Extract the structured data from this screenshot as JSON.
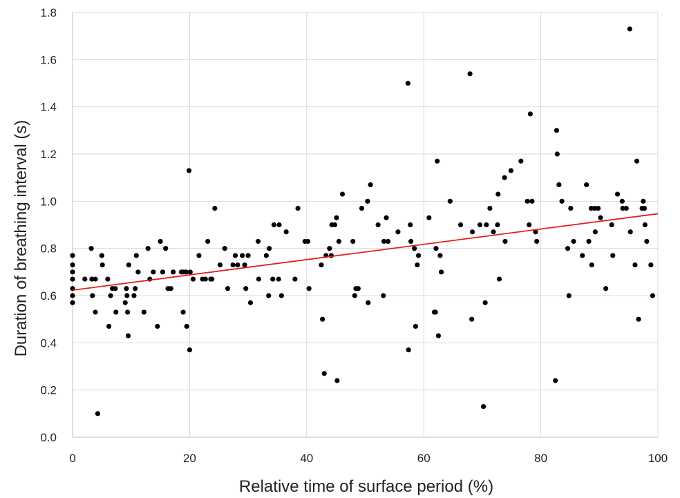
{
  "chart_data": {
    "type": "scatter",
    "title": "",
    "xlabel": "Relative time of surface period (%)",
    "ylabel": "Duration of breathing interval (s)",
    "xlim": [
      0,
      100
    ],
    "ylim": [
      0,
      1.8
    ],
    "xticks": [
      0,
      20,
      40,
      60,
      80,
      100
    ],
    "yticks": [
      0.0,
      0.2,
      0.4,
      0.6,
      0.8,
      1.0,
      1.2,
      1.4,
      1.6,
      1.8
    ],
    "xtick_labels": [
      "0",
      "20",
      "40",
      "60",
      "80",
      "100"
    ],
    "ytick_labels": [
      "0.0",
      "0.2",
      "0.4",
      "0.6",
      "0.8",
      "1.0",
      "1.2",
      "1.4",
      "1.6",
      "1.8"
    ],
    "grid": true,
    "point_color": "#000000",
    "trend_color": "#e0201b",
    "trendline": {
      "x": [
        0,
        100
      ],
      "y": [
        0.623,
        0.947
      ]
    },
    "points": [
      [
        0,
        0.57
      ],
      [
        0,
        0.6
      ],
      [
        0,
        0.63
      ],
      [
        0,
        0.67
      ],
      [
        0,
        0.7
      ],
      [
        0,
        0.73
      ],
      [
        0,
        0.77
      ],
      [
        2.1,
        0.67
      ],
      [
        3.2,
        0.8
      ],
      [
        3.3,
        0.67
      ],
      [
        3.4,
        0.6
      ],
      [
        3.9,
        0.67
      ],
      [
        3.9,
        0.53
      ],
      [
        4.3,
        0.1
      ],
      [
        5,
        0.77
      ],
      [
        5.1,
        0.73
      ],
      [
        6,
        0.67
      ],
      [
        6.2,
        0.47
      ],
      [
        6.5,
        0.6
      ],
      [
        6.8,
        0.63
      ],
      [
        7.3,
        0.63
      ],
      [
        7.4,
        0.53
      ],
      [
        9,
        0.57
      ],
      [
        9.2,
        0.63
      ],
      [
        9.3,
        0.6
      ],
      [
        9.4,
        0.53
      ],
      [
        9.5,
        0.43
      ],
      [
        9.6,
        0.73
      ],
      [
        10.5,
        0.6
      ],
      [
        10.7,
        0.63
      ],
      [
        10.9,
        0.77
      ],
      [
        11.2,
        0.7
      ],
      [
        12.2,
        0.53
      ],
      [
        12.9,
        0.8
      ],
      [
        13.2,
        0.67
      ],
      [
        13.8,
        0.7
      ],
      [
        14.5,
        0.47
      ],
      [
        15,
        0.83
      ],
      [
        15.4,
        0.7
      ],
      [
        15.9,
        0.8
      ],
      [
        16.3,
        0.63
      ],
      [
        16.8,
        0.63
      ],
      [
        17.2,
        0.7
      ],
      [
        18.6,
        0.7
      ],
      [
        18.9,
        0.53
      ],
      [
        19,
        0.7
      ],
      [
        19.4,
        0.7
      ],
      [
        19.5,
        0.47
      ],
      [
        19.9,
        1.13
      ],
      [
        20,
        0.37
      ],
      [
        20.1,
        0.7
      ],
      [
        20.6,
        0.67
      ],
      [
        21.6,
        0.77
      ],
      [
        22.2,
        0.67
      ],
      [
        22.7,
        0.67
      ],
      [
        23.1,
        0.83
      ],
      [
        23.6,
        0.67
      ],
      [
        23.8,
        0.67
      ],
      [
        24.3,
        0.97
      ],
      [
        25.2,
        0.73
      ],
      [
        26,
        0.8
      ],
      [
        26.5,
        0.63
      ],
      [
        27.4,
        0.73
      ],
      [
        27.8,
        0.77
      ],
      [
        28.2,
        0.73
      ],
      [
        29,
        0.77
      ],
      [
        29.4,
        0.73
      ],
      [
        29.6,
        0.63
      ],
      [
        30,
        0.77
      ],
      [
        30.4,
        0.57
      ],
      [
        31.7,
        0.83
      ],
      [
        31.8,
        0.67
      ],
      [
        33.1,
        0.77
      ],
      [
        33.5,
        0.6
      ],
      [
        33.6,
        0.8
      ],
      [
        34.2,
        0.67
      ],
      [
        34.4,
        0.9
      ],
      [
        35.2,
        0.67
      ],
      [
        35.3,
        0.9
      ],
      [
        35.7,
        0.6
      ],
      [
        36.5,
        0.87
      ],
      [
        38,
        0.67
      ],
      [
        38.5,
        0.97
      ],
      [
        39.7,
        0.83
      ],
      [
        40.2,
        0.83
      ],
      [
        40.4,
        0.63
      ],
      [
        42.5,
        0.73
      ],
      [
        42.7,
        0.5
      ],
      [
        43,
        0.27
      ],
      [
        43.3,
        0.77
      ],
      [
        43.9,
        0.8
      ],
      [
        44.2,
        0.77
      ],
      [
        44.3,
        0.9
      ],
      [
        44.8,
        0.9
      ],
      [
        45.1,
        0.93
      ],
      [
        45.2,
        0.24
      ],
      [
        45.5,
        0.83
      ],
      [
        46.1,
        1.03
      ],
      [
        47.9,
        0.83
      ],
      [
        48.2,
        0.6
      ],
      [
        48.4,
        0.63
      ],
      [
        48.8,
        0.63
      ],
      [
        49.4,
        0.97
      ],
      [
        50.4,
        1.0
      ],
      [
        50.5,
        0.57
      ],
      [
        50.9,
        1.07
      ],
      [
        52.2,
        0.9
      ],
      [
        53.1,
        0.6
      ],
      [
        53.2,
        0.83
      ],
      [
        53.6,
        0.93
      ],
      [
        53.9,
        0.83
      ],
      [
        55.6,
        0.87
      ],
      [
        57.3,
        1.5
      ],
      [
        57.4,
        0.37
      ],
      [
        57.7,
        0.9
      ],
      [
        57.8,
        0.83
      ],
      [
        58.4,
        0.8
      ],
      [
        58.6,
        0.47
      ],
      [
        58.9,
        0.73
      ],
      [
        59.1,
        0.77
      ],
      [
        60.9,
        0.93
      ],
      [
        61.8,
        0.53
      ],
      [
        62,
        0.53
      ],
      [
        62.1,
        0.8
      ],
      [
        62.3,
        1.17
      ],
      [
        62.5,
        0.43
      ],
      [
        62.8,
        0.77
      ],
      [
        63,
        0.7
      ],
      [
        64.5,
        1.0
      ],
      [
        66.3,
        0.9
      ],
      [
        67.9,
        1.54
      ],
      [
        68.2,
        0.5
      ],
      [
        68.3,
        0.87
      ],
      [
        69.6,
        0.9
      ],
      [
        70.2,
        0.13
      ],
      [
        70.5,
        0.57
      ],
      [
        70.7,
        0.9
      ],
      [
        71.3,
        0.97
      ],
      [
        71.9,
        0.87
      ],
      [
        72.6,
        0.9
      ],
      [
        72.7,
        1.03
      ],
      [
        72.9,
        0.67
      ],
      [
        73.8,
        1.1
      ],
      [
        73.9,
        0.83
      ],
      [
        74.9,
        1.13
      ],
      [
        76.6,
        1.17
      ],
      [
        77.7,
        1.0
      ],
      [
        78,
        0.9
      ],
      [
        78.2,
        1.37
      ],
      [
        78.5,
        1.0
      ],
      [
        79.1,
        0.87
      ],
      [
        79.3,
        0.83
      ],
      [
        82.5,
        0.24
      ],
      [
        82.7,
        1.3
      ],
      [
        82.8,
        1.2
      ],
      [
        83.1,
        1.07
      ],
      [
        83.6,
        1.0
      ],
      [
        84.6,
        0.8
      ],
      [
        84.8,
        0.6
      ],
      [
        85.1,
        0.97
      ],
      [
        85.6,
        0.83
      ],
      [
        87.1,
        0.77
      ],
      [
        87.8,
        1.07
      ],
      [
        88.2,
        0.83
      ],
      [
        88.6,
        0.97
      ],
      [
        88.7,
        0.73
      ],
      [
        89.2,
        0.97
      ],
      [
        89.3,
        0.87
      ],
      [
        89.8,
        0.97
      ],
      [
        90.2,
        0.93
      ],
      [
        91.1,
        0.63
      ],
      [
        92.1,
        0.9
      ],
      [
        92.3,
        0.77
      ],
      [
        93.1,
        1.03
      ],
      [
        93.9,
        1.0
      ],
      [
        94,
        0.97
      ],
      [
        94.6,
        0.97
      ],
      [
        95.2,
        1.73
      ],
      [
        95.3,
        0.87
      ],
      [
        96.1,
        0.73
      ],
      [
        96.4,
        1.17
      ],
      [
        96.7,
        0.5
      ],
      [
        97.3,
        0.97
      ],
      [
        97.5,
        1.0
      ],
      [
        97.7,
        0.97
      ],
      [
        97.8,
        0.9
      ],
      [
        98.1,
        0.83
      ],
      [
        98.8,
        0.73
      ],
      [
        99.1,
        0.6
      ]
    ]
  }
}
